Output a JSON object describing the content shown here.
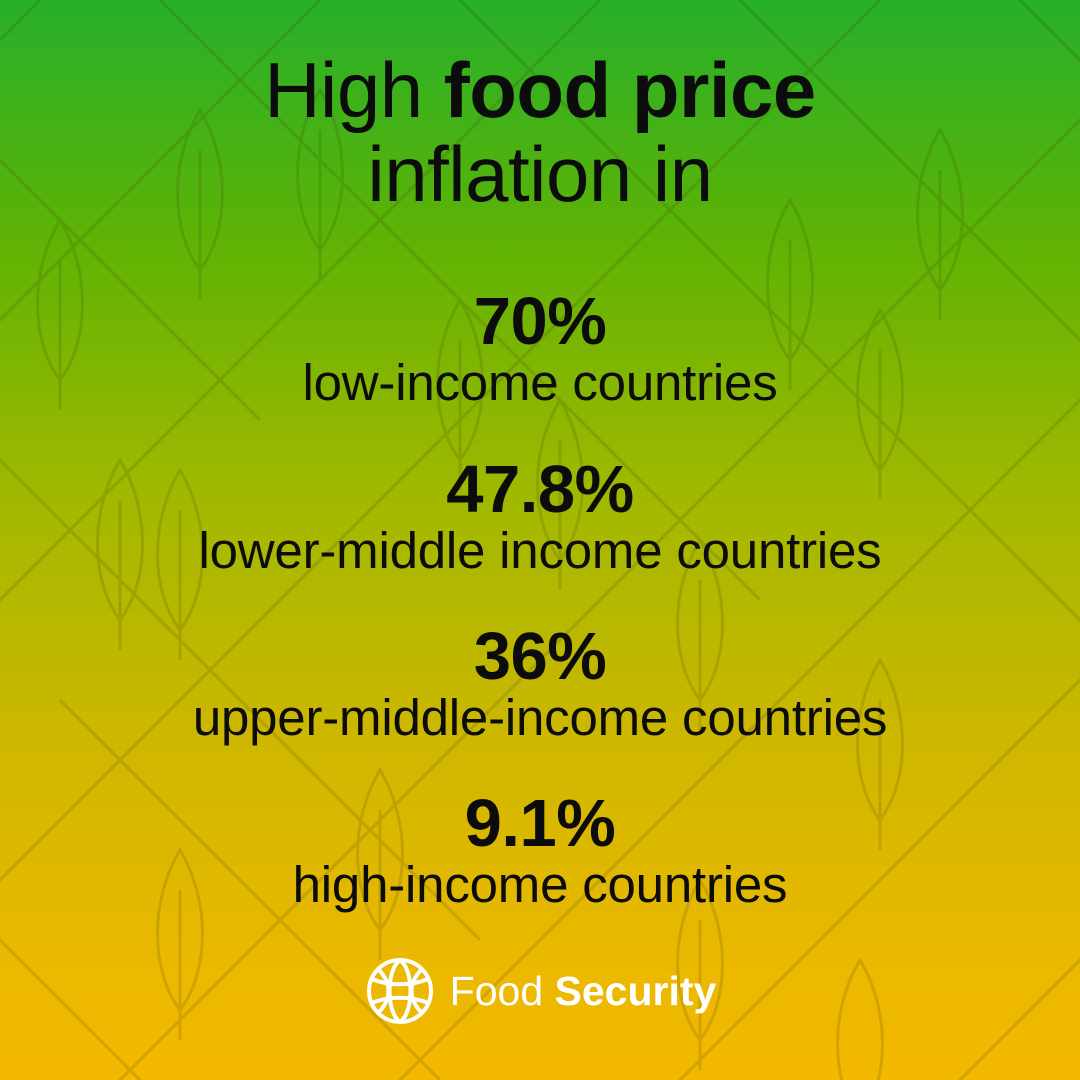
{
  "headline": {
    "part1": "High ",
    "bold": "food price",
    "part2": "inflation in"
  },
  "stats": [
    {
      "value": "70%",
      "label": "low-income countries"
    },
    {
      "value": "47.8%",
      "label": "lower-middle income countries"
    },
    {
      "value": "36%",
      "label": "upper-middle-income countries"
    },
    {
      "value": "9.1%",
      "label": "high-income countries"
    }
  ],
  "brand": {
    "regular": "Food ",
    "bold": "Security",
    "logo_icon": "globe-icon"
  },
  "colors": {
    "gradient_top": "#27b02a",
    "gradient_bottom": "#f3b800",
    "text": "#0c0c0c",
    "brand_text": "#ffffff"
  }
}
